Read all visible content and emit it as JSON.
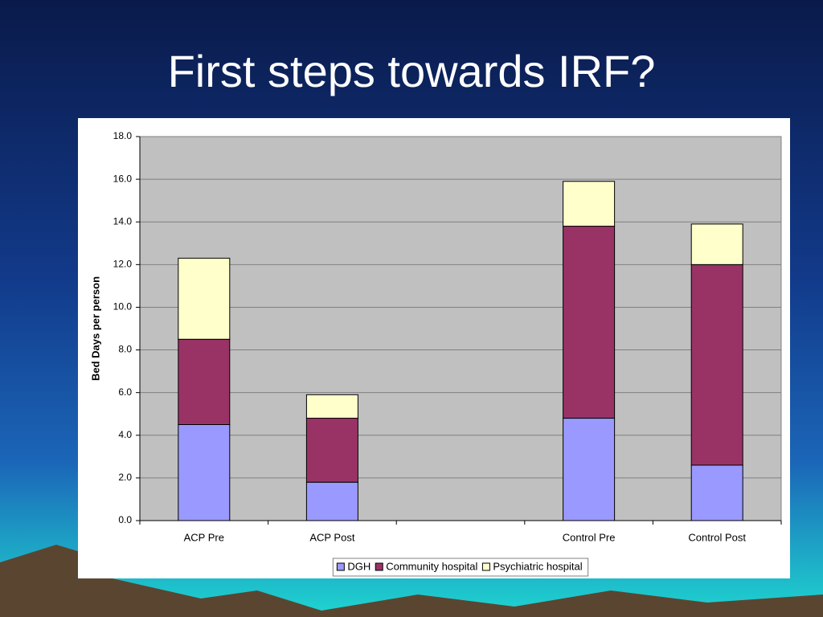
{
  "title": "First steps towards IRF?",
  "chart_data": {
    "type": "stacked_bar",
    "y_label": "Bed Days per person",
    "categories": [
      "ACP Pre",
      "ACP Post",
      null,
      "Control Pre",
      "Control Post"
    ],
    "series": [
      {
        "name": "DGH",
        "color": "#9999ff",
        "values": [
          4.5,
          1.8,
          null,
          4.8,
          2.6
        ]
      },
      {
        "name": "Community hospital",
        "color": "#993366",
        "values": [
          4.0,
          3.0,
          null,
          9.0,
          9.4
        ]
      },
      {
        "name": "Psychiatric hospital",
        "color": "#ffffcc",
        "values": [
          3.8,
          1.1,
          null,
          2.1,
          1.9
        ]
      }
    ],
    "ylim": [
      0,
      18
    ],
    "yticks": [
      {
        "value": 0,
        "label": "0.0"
      },
      {
        "value": 2,
        "label": "2.0"
      },
      {
        "value": 4,
        "label": "4.0"
      },
      {
        "value": 6,
        "label": "6.0"
      },
      {
        "value": 8,
        "label": "8.0"
      },
      {
        "value": 10,
        "label": "10.0"
      },
      {
        "value": 12,
        "label": "12.0"
      },
      {
        "value": 14,
        "label": "14.0"
      },
      {
        "value": 16,
        "label": "16.0"
      },
      {
        "value": 18,
        "label": "18.0"
      }
    ],
    "grid": true,
    "legend": "bottom"
  }
}
